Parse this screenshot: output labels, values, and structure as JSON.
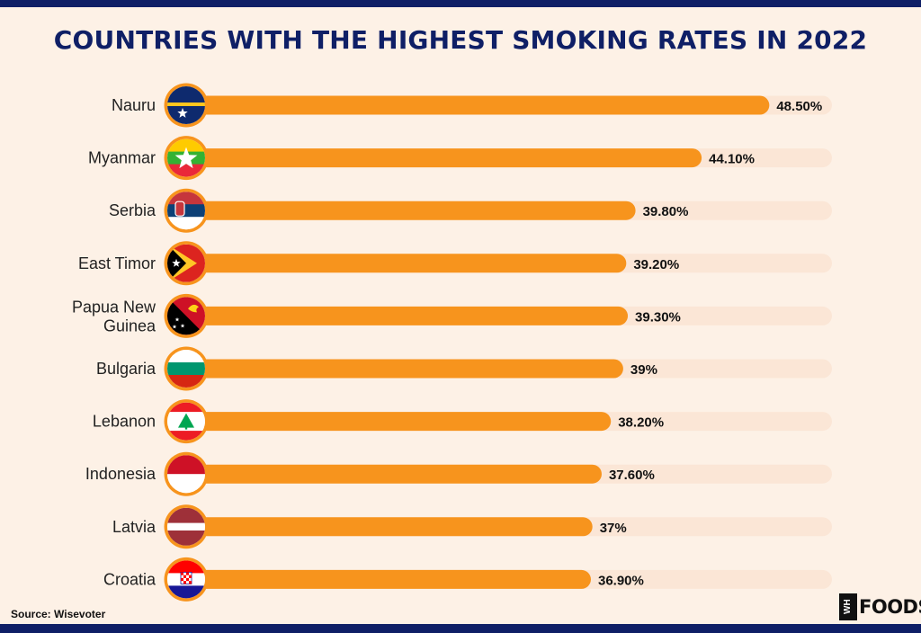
{
  "chart_data": {
    "type": "bar",
    "orientation": "horizontal",
    "title": "COUNTRIES WITH THE HIGHEST SMOKING RATES IN 2022",
    "categories": [
      "Nauru",
      "Myanmar",
      "Serbia",
      "East Timor",
      "Papua New Guinea",
      "Bulgaria",
      "Lebanon",
      "Indonesia",
      "Latvia",
      "Croatia"
    ],
    "values": [
      48.5,
      44.1,
      39.8,
      39.2,
      39.3,
      39,
      38.2,
      37.6,
      37,
      36.9
    ],
    "value_labels": [
      "48.50%",
      "44.10%",
      "39.80%",
      "39.20%",
      "39.30%",
      "39%",
      "38.20%",
      "37.60%",
      "37%",
      "36.90%"
    ],
    "unit": "%",
    "grid": false,
    "legend": "none",
    "colors": {
      "bar": "#f7941d",
      "track": "#fbe6d6",
      "title": "#0f1f66",
      "background": "#fdf1e6"
    }
  },
  "flags": [
    "nauru-flag-icon",
    "myanmar-flag-icon",
    "serbia-flag-icon",
    "east-timor-flag-icon",
    "papua-new-guinea-flag-icon",
    "bulgaria-flag-icon",
    "lebanon-flag-icon",
    "indonesia-flag-icon",
    "latvia-flag-icon",
    "croatia-flag-icon"
  ],
  "footer": {
    "source": "Source: Wisevoter",
    "logo_box": "WH",
    "logo_text": "FOODS"
  }
}
